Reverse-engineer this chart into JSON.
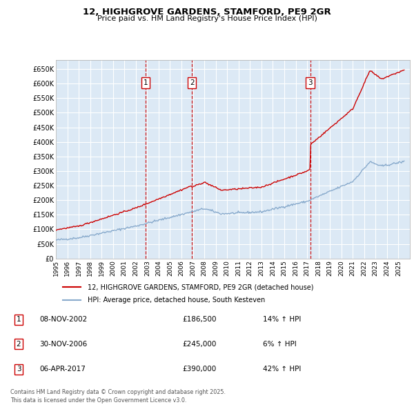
{
  "title_line1": "12, HIGHGROVE GARDENS, STAMFORD, PE9 2GR",
  "title_line2": "Price paid vs. HM Land Registry's House Price Index (HPI)",
  "background_color": "#ffffff",
  "chart_bg_color": "#dce9f5",
  "grid_color": "#ffffff",
  "yticks": [
    0,
    50000,
    100000,
    150000,
    200000,
    250000,
    300000,
    350000,
    400000,
    450000,
    500000,
    550000,
    600000,
    650000
  ],
  "ytick_labels": [
    "£0",
    "£50K",
    "£100K",
    "£150K",
    "£200K",
    "£250K",
    "£300K",
    "£350K",
    "£400K",
    "£450K",
    "£500K",
    "£550K",
    "£600K",
    "£650K"
  ],
  "xmin": 1995,
  "xmax": 2026,
  "ymin": 0,
  "ymax": 680000,
  "sale_dates": [
    2002.86,
    2006.92,
    2017.27
  ],
  "sale_prices": [
    186500,
    245000,
    390000
  ],
  "sale_labels": [
    "1",
    "2",
    "3"
  ],
  "sale_color": "#cc0000",
  "hpi_color": "#88aacc",
  "legend_entries": [
    "12, HIGHGROVE GARDENS, STAMFORD, PE9 2GR (detached house)",
    "HPI: Average price, detached house, South Kesteven"
  ],
  "table_rows": [
    [
      "1",
      "08-NOV-2002",
      "£186,500",
      "14% ↑ HPI"
    ],
    [
      "2",
      "30-NOV-2006",
      "£245,000",
      "6% ↑ HPI"
    ],
    [
      "3",
      "06-APR-2017",
      "£390,000",
      "42% ↑ HPI"
    ]
  ],
  "footnote": "Contains HM Land Registry data © Crown copyright and database right 2025.\nThis data is licensed under the Open Government Licence v3.0.",
  "xticks": [
    1995,
    1996,
    1997,
    1998,
    1999,
    2000,
    2001,
    2002,
    2003,
    2004,
    2005,
    2006,
    2007,
    2008,
    2009,
    2010,
    2011,
    2012,
    2013,
    2014,
    2015,
    2016,
    2017,
    2018,
    2019,
    2020,
    2021,
    2022,
    2023,
    2024,
    2025
  ]
}
